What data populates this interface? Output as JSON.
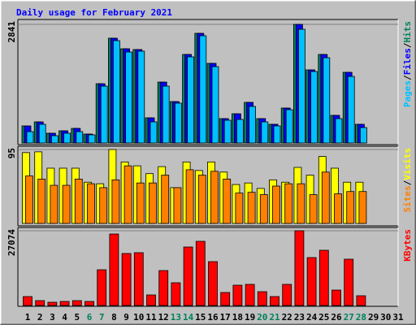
{
  "chart_data": [
    {
      "type": "bar",
      "title": "Daily usage for February 2021",
      "ylim": [
        0,
        2841
      ],
      "yticks": [
        2841
      ],
      "legend_separator": "/",
      "series": [
        {
          "name": "Hits",
          "color": "#00805c",
          "values": [
            409,
            506,
            234,
            292,
            350,
            214,
            1420,
            2510,
            2257,
            2238,
            603,
            1459,
            992,
            2121,
            2627,
            1907,
            584,
            700,
            973,
            584,
            448,
            837,
            2841,
            1751,
            2121,
            662,
            1693,
            448,
            null,
            null,
            null
          ]
        },
        {
          "name": "Files",
          "color": "#0000ff",
          "values": [
            409,
            506,
            234,
            292,
            350,
            214,
            1420,
            2510,
            2257,
            2238,
            603,
            1459,
            992,
            2121,
            2627,
            1907,
            584,
            700,
            973,
            584,
            448,
            837,
            2841,
            1751,
            2121,
            662,
            1693,
            448,
            null,
            null,
            null
          ]
        },
        {
          "name": "Pages",
          "color": "#00c0ff",
          "values": [
            272,
            448,
            175,
            234,
            272,
            195,
            1362,
            2452,
            2179,
            2199,
            506,
            1362,
            954,
            2063,
            2569,
            1829,
            545,
            564,
            876,
            506,
            409,
            798,
            2724,
            1712,
            2043,
            584,
            1595,
            370,
            null,
            null,
            null
          ]
        }
      ]
    },
    {
      "type": "bar",
      "ylim": [
        0,
        95
      ],
      "yticks": [
        95
      ],
      "legend_separator": "/",
      "series": [
        {
          "name": "Visits",
          "color": "#ffff00",
          "values": [
            91,
            92,
            71,
            71,
            71,
            53,
            51,
            95,
            79,
            74,
            64,
            73,
            46,
            79,
            68,
            79,
            66,
            50,
            52,
            45,
            56,
            53,
            72,
            62,
            86,
            71,
            53,
            53,
            null,
            null,
            null
          ]
        },
        {
          "name": "Sites",
          "color": "#ff8000",
          "values": [
            61,
            57,
            49,
            49,
            57,
            51,
            46,
            56,
            74,
            52,
            52,
            62,
            46,
            69,
            62,
            67,
            57,
            39,
            40,
            37,
            48,
            51,
            51,
            37,
            66,
            38,
            41,
            41,
            null,
            null,
            null
          ]
        }
      ]
    },
    {
      "type": "bar",
      "ylim": [
        0,
        27074
      ],
      "yticks": [
        27074
      ],
      "categories": [
        "1",
        "2",
        "3",
        "4",
        "5",
        "6",
        "7",
        "8",
        "9",
        "10",
        "11",
        "12",
        "13",
        "14",
        "15",
        "16",
        "17",
        "18",
        "19",
        "20",
        "21",
        "22",
        "23",
        "24",
        "25",
        "26",
        "27",
        "28",
        "29",
        "30",
        "31"
      ],
      "category_colors": [
        "#000000",
        "#000000",
        "#000000",
        "#000000",
        "#000000",
        "#00805c",
        "#00805c",
        "#000000",
        "#000000",
        "#000000",
        "#000000",
        "#000000",
        "#00805c",
        "#00805c",
        "#000000",
        "#000000",
        "#000000",
        "#000000",
        "#000000",
        "#00805c",
        "#00805c",
        "#000000",
        "#000000",
        "#000000",
        "#000000",
        "#000000",
        "#00805c",
        "#00805c",
        "#000000",
        "#000000",
        "#000000"
      ],
      "series": [
        {
          "name": "KBytes",
          "color": "#ff0000",
          "values": [
            3237,
            1766,
            1177,
            1471,
            1766,
            1471,
            12948,
            25897,
            18834,
            19128,
            3826,
            12654,
            8240,
            21188,
            23248,
            15891,
            4709,
            7357,
            7651,
            5003,
            3237,
            7651,
            27074,
            17363,
            20011,
            5591,
            16774,
            3531,
            null,
            null,
            null
          ]
        }
      ]
    }
  ]
}
